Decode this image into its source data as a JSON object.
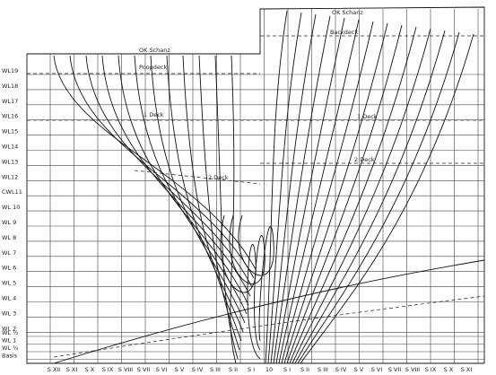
{
  "waterlines": [
    "WL19",
    "WL18",
    "WL17",
    "WL16",
    "WL15",
    "WL14",
    "WL13",
    "WL12",
    "CWL11",
    "WL 10",
    "WL 9",
    "WL 8",
    "WL 7",
    "WL 6",
    "WL 5",
    "WL 4",
    "WL 3",
    "WL 2",
    "WL ½",
    "WL 1",
    "WL ¼",
    "Basis"
  ],
  "stations": [
    "S XII",
    "S XI",
    "S X",
    "S IX",
    "S VIII",
    "S VII",
    "S VI",
    "S V",
    "S IV",
    "S III",
    "S II",
    "S I",
    "10",
    "S I",
    "S II",
    "S III",
    "S IV",
    "S V",
    "S VI",
    "S VII",
    "S VIII",
    "S IX",
    "S X",
    "S XI"
  ],
  "decks_aft": [
    "OK Schanz",
    "Poopdeck",
    "1 Deck",
    "2 Deck"
  ],
  "decks_fwd": [
    "OK Schanz",
    "Backdeck",
    "1 Deck",
    "2 Deck"
  ]
}
